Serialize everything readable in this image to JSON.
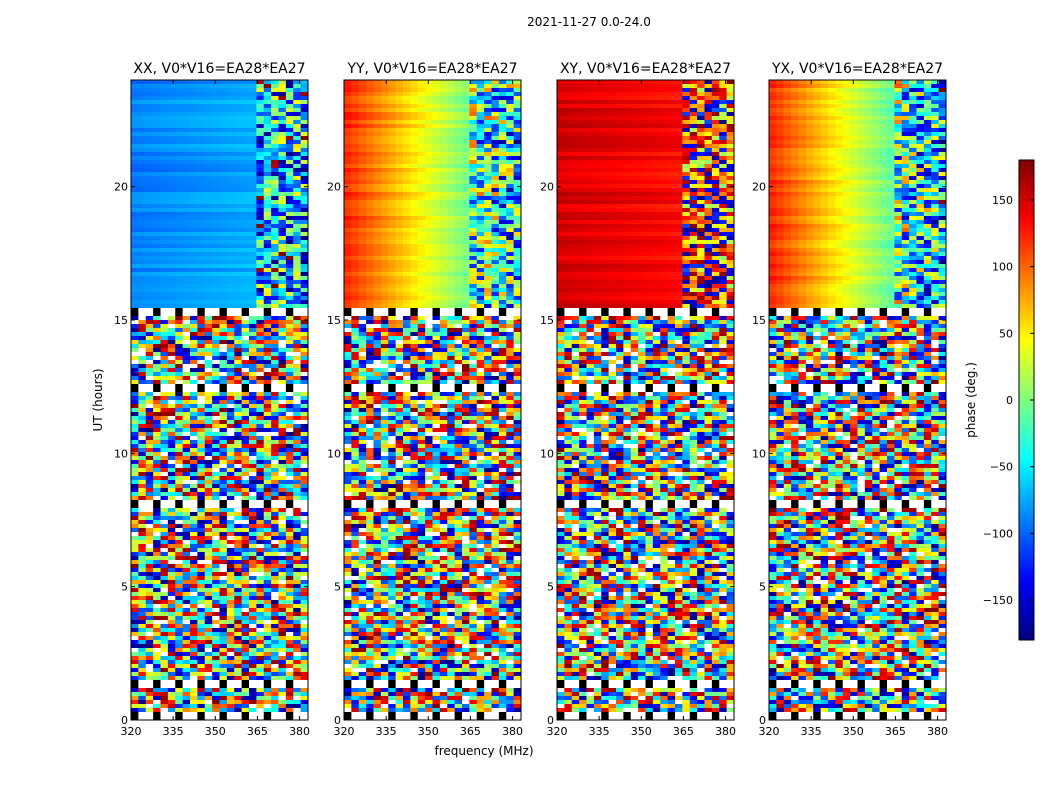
{
  "chart_data": {
    "type": "heatmap",
    "title": "2021-11-27 0.0-24.0",
    "xlabel": "frequency (MHz)",
    "ylabel": "UT (hours)",
    "xlim": [
      320,
      383
    ],
    "ylim": [
      0,
      24
    ],
    "xticks": [
      "320",
      "335",
      "350",
      "365",
      "380"
    ],
    "yticks": [
      "0",
      "5",
      "10",
      "15",
      "20"
    ],
    "colorbar": {
      "label": "phase (deg.)",
      "range": [
        -180,
        180
      ],
      "ticks": [
        "150",
        "100",
        "50",
        "0",
        "−50",
        "−100",
        "−150"
      ],
      "colormap": "jet",
      "colors": [
        "#00007f",
        "#0000ff",
        "#007fff",
        "#00ffff",
        "#7fff7f",
        "#ffff00",
        "#ff7f00",
        "#ff0000",
        "#7f0000"
      ]
    },
    "panels": [
      {
        "title": "XX, V0*V16=EA28*EA27",
        "pol": "XX",
        "base_phase_deg": -90,
        "slope": 0.4
      },
      {
        "title": "YY, V0*V16=EA28*EA27",
        "pol": "YY",
        "base_phase_deg": 120,
        "slope": -3.0
      },
      {
        "title": "XY, V0*V16=EA28*EA27",
        "pol": "XY",
        "base_phase_deg": 150,
        "slope": -0.4
      },
      {
        "title": "YX, V0*V16=EA28*EA27",
        "pol": "YX",
        "base_phase_deg": 120,
        "slope": -3.2
      }
    ],
    "coherent_range_hours": [
      15.6,
      24.0
    ],
    "flagged_gaps_hours": [
      [
        15.3,
        15.6
      ],
      [
        12.4,
        12.7
      ],
      [
        8.1,
        8.3
      ],
      [
        1.3,
        1.6
      ],
      [
        0.0,
        0.3
      ]
    ]
  }
}
